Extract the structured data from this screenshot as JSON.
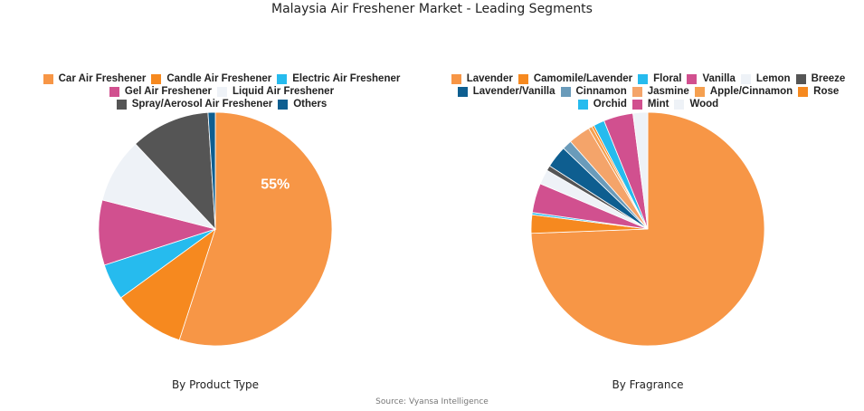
{
  "title": "Malaysia Air Freshener Market - Leading Segments",
  "source": "Source: Vyansa Intelligence",
  "chart_data": [
    {
      "type": "pie",
      "title": "By Product Type",
      "labels": [
        "Car Air Freshener",
        "Candle Air Freshener",
        "Electric Air Freshener",
        "Gel Air Freshener",
        "Liquid Air Freshener",
        "Spray/Aerosol Air Freshener",
        "Others"
      ],
      "values": [
        55,
        10,
        5,
        9,
        9,
        11,
        1
      ],
      "colors": [
        "#F79646",
        "#F6891F",
        "#26BBEE",
        "#D1508F",
        "#EEF2F7",
        "#555555",
        "#0E5E90"
      ],
      "data_labels": [
        {
          "label": "Car Air Freshener",
          "text": "55%"
        }
      ],
      "legend_position": "top"
    },
    {
      "type": "pie",
      "title": "By Fragrance",
      "labels": [
        "Lavender",
        "Camomile/Lavender",
        "Floral",
        "Vanilla",
        "Lemon",
        "Breeze",
        "Lavender/Vanilla",
        "Cinnamon",
        "Jasmine",
        "Apple/Cinnamon",
        "Rose",
        "Orchid",
        "Mint",
        "Wood"
      ],
      "values": [
        73,
        2.5,
        0.3,
        4,
        2,
        0.7,
        3,
        1.3,
        3,
        0.5,
        0.3,
        1.5,
        4,
        2
      ],
      "colors": [
        "#F79646",
        "#F6891F",
        "#26BBEE",
        "#D1508F",
        "#EEF2F7",
        "#555555",
        "#0E5E90",
        "#6A9BBA",
        "#F4A46A",
        "#F5A050",
        "#F6891F",
        "#26BBEE",
        "#D1508F",
        "#EEF2F7"
      ],
      "legend_position": "top"
    }
  ]
}
